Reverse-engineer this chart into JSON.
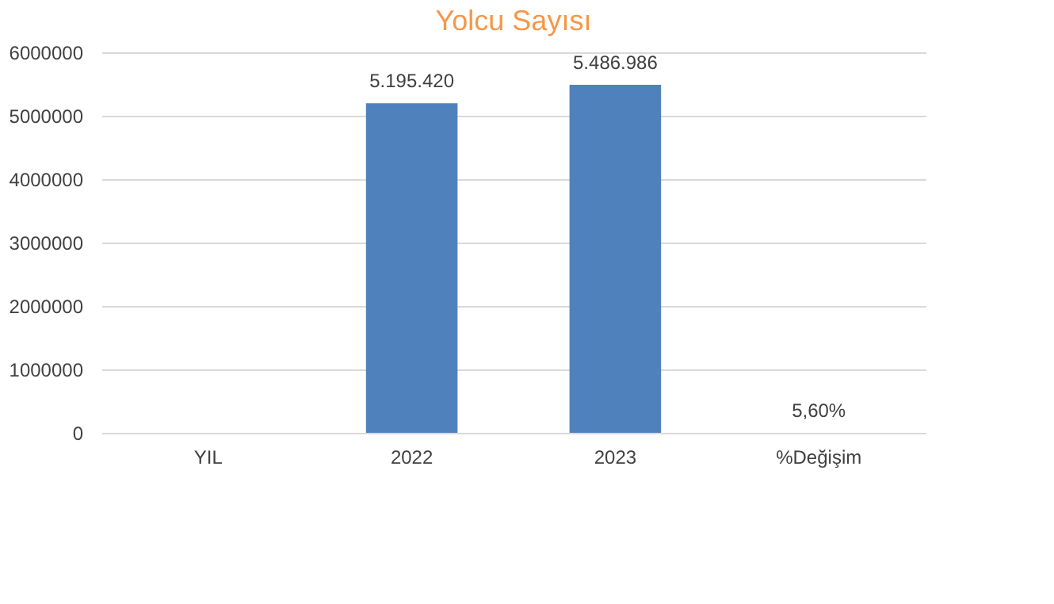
{
  "chart_data": {
    "type": "bar",
    "title": "Yolcu Sayısı",
    "categories": [
      "YIL",
      "2022",
      "2023",
      "%Değişim"
    ],
    "values": [
      null,
      5195420,
      5486986,
      5.6
    ],
    "color": "#4f81bd",
    "value_labels": [
      null,
      "5.195.420",
      "5.486.986",
      "5,60%"
    ],
    "ylim": [
      0,
      6000000
    ],
    "yticks": [
      0,
      1000000,
      2000000,
      3000000,
      4000000,
      5000000,
      6000000
    ],
    "grid": "y"
  }
}
